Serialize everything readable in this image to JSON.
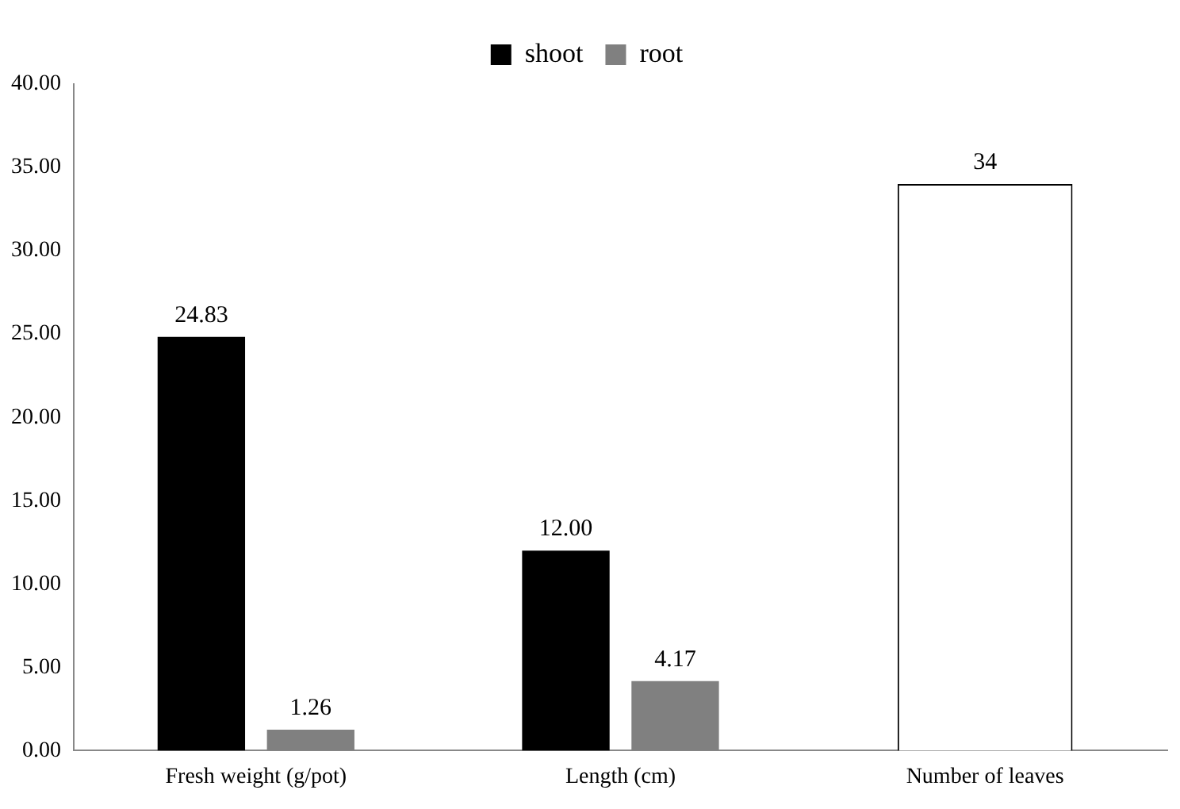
{
  "chart_data": {
    "type": "bar",
    "categories": [
      "Fresh weight (g/pot)",
      "Length (cm)",
      "Number of leaves"
    ],
    "series": [
      {
        "name": "shoot",
        "color": "#000000",
        "values": [
          24.83,
          12.0,
          null
        ],
        "value_labels": [
          "24.83",
          "12.00",
          null
        ]
      },
      {
        "name": "root",
        "color": "#808080",
        "values": [
          1.26,
          4.17,
          null
        ],
        "value_labels": [
          "1.26",
          "4.17",
          null
        ]
      },
      {
        "color": "#ffffff",
        "values": [
          null,
          null,
          34
        ],
        "value_labels": [
          null,
          null,
          "34"
        ]
      }
    ],
    "ylim": [
      0,
      40
    ],
    "yticks": [
      {
        "value": 0,
        "label": "0.00"
      },
      {
        "value": 5,
        "label": "5.00"
      },
      {
        "value": 10,
        "label": "10.00"
      },
      {
        "value": 15,
        "label": "15.00"
      },
      {
        "value": 20,
        "label": "20.00"
      },
      {
        "value": 25,
        "label": "25.00"
      },
      {
        "value": 30,
        "label": "30.00"
      },
      {
        "value": 35,
        "label": "35.00"
      },
      {
        "value": 40,
        "label": "40.00"
      }
    ],
    "grid": false,
    "legend": "top"
  }
}
